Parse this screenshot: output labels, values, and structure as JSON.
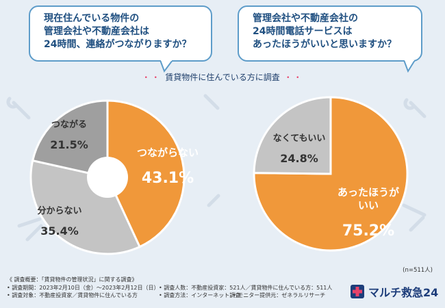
{
  "questions": {
    "q1": [
      "現在住んでいる物件の",
      "管理会社や不動産会社は",
      "24時間、連絡がつながりますか？"
    ],
    "q2": [
      "管理会社や不動産会社の",
      "24時間電話サービスは",
      "あったほうがいいと思いますか？"
    ]
  },
  "subtitle": "賃貸物件に住んでいる方に調査",
  "subtitle_dots": "・・",
  "sample_note": "(n=511人)",
  "footer": {
    "line1": "《 調査概要：「賃貸物件の管理状況」に関する調査》",
    "period": "• 調査期間：2023年2月10日（金）～2023年2月12日（日）",
    "count": "• 調査人数：不動産投資家：521人／賃貸物件に住んでいる方：511人",
    "target": "• 調査対象：不動産投資家／賃貸物件に住んでいる方",
    "method": "• 調査方法：インターネット調査",
    "monitor": "• モニター提供元：ゼネラルリサーチ"
  },
  "brand": {
    "name": "マルチ救急24"
  },
  "colors": {
    "orange": "#f0983a",
    "gray_light": "#c4c4c4",
    "gray_dark": "#9f9f9f",
    "navy": "#1d3d7a"
  },
  "chart_data": [
    {
      "type": "pie",
      "title": "現在住んでいる物件の管理会社や不動産会社は24時間、連絡がつながりますか？",
      "unit": "%",
      "slices": [
        {
          "label": [
            "つながらない"
          ],
          "value": 43.1,
          "value_label": "43.1%",
          "color": "#f0983a"
        },
        {
          "label": [
            "分からない"
          ],
          "value": 35.4,
          "value_label": "35.4%",
          "color": "#c4c4c4"
        },
        {
          "label": [
            "つながる"
          ],
          "value": 21.5,
          "value_label": "21.5%",
          "color": "#9f9f9f"
        }
      ]
    },
    {
      "type": "pie",
      "title": "管理会社や不動産会社の24時間電話サービスはあったほうがいいと思いますか？",
      "unit": "%",
      "slices": [
        {
          "label": [
            "あったほうが",
            "いい"
          ],
          "value": 75.2,
          "value_label": "75.2%",
          "color": "#f0983a"
        },
        {
          "label": [
            "なくてもいい"
          ],
          "value": 24.8,
          "value_label": "24.8%",
          "color": "#c4c4c4"
        }
      ]
    }
  ]
}
